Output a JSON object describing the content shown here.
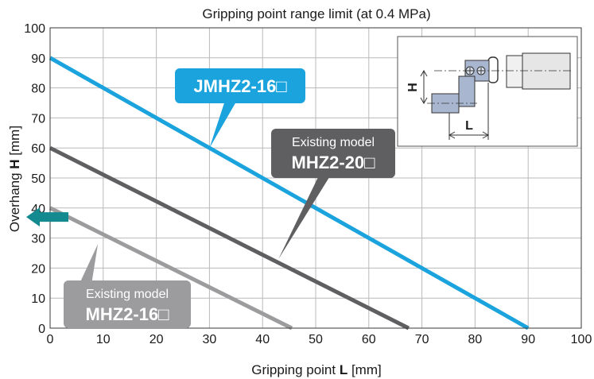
{
  "chart_data": {
    "type": "line",
    "title": "Gripping point range limit (at 0.4 MPa)",
    "xlabel": {
      "prefix": "Gripping point ",
      "bold": "L",
      "suffix": " [mm]"
    },
    "ylabel": {
      "prefix": "Overhang ",
      "bold": "H",
      "suffix": " [mm]"
    },
    "xlim": [
      0,
      100
    ],
    "ylim": [
      0,
      100
    ],
    "xticks": [
      0,
      10,
      20,
      30,
      40,
      50,
      60,
      70,
      80,
      90,
      100
    ],
    "yticks": [
      0,
      10,
      20,
      30,
      40,
      50,
      60,
      70,
      80,
      90,
      100
    ],
    "grid": true,
    "series": [
      {
        "name": "JMHZ2-16□",
        "x": [
          0,
          90
        ],
        "y": [
          90,
          0
        ],
        "color": "#1aa3dc"
      },
      {
        "name": "MHZ2-20□",
        "caption": "Existing model",
        "x": [
          0,
          67.5
        ],
        "y": [
          60,
          0
        ],
        "color": "#5f5f61"
      },
      {
        "name": "MHZ2-16□",
        "caption": "Existing model",
        "x": [
          0,
          45.5
        ],
        "y": [
          40,
          0
        ],
        "color": "#9c9c9e"
      }
    ],
    "callouts": [
      {
        "series": 0,
        "anchor": [
          30,
          60
        ]
      },
      {
        "series": 1,
        "anchor": [
          43,
          23
        ]
      },
      {
        "series": 2,
        "anchor": [
          9,
          28
        ]
      }
    ],
    "arrow": {
      "color": "#138a8f",
      "direction": "left",
      "at_y": 37
    },
    "inset": {
      "labels": [
        "H",
        "L"
      ]
    }
  }
}
